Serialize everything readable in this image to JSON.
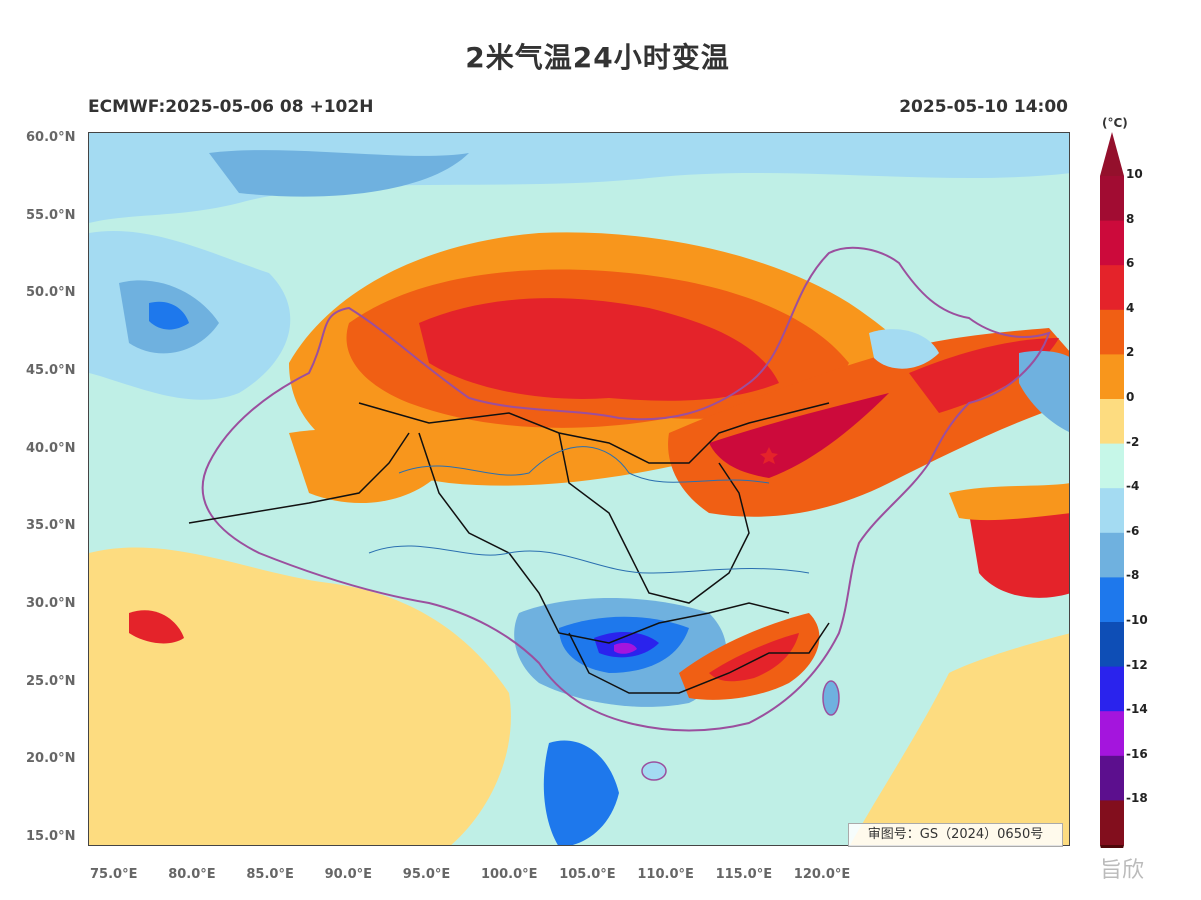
{
  "title": "2米气温24小时变温",
  "model_run": "ECMWF:2025-05-06 08 +102H",
  "valid_time": "2025-05-10 14:00",
  "approval_number": "审图号：GS（2024）0650号",
  "watermark_text": "旨欣",
  "colorbar": {
    "unit": "(°C)",
    "ticks": [
      "10",
      "8",
      "6",
      "4",
      "2",
      "0",
      "-2",
      "-4",
      "-6",
      "-8",
      "-10",
      "-12",
      "-14",
      "-16",
      "-18"
    ],
    "colors": [
      "#a10c32",
      "#cc0a3b",
      "#e4232a",
      "#f05f14",
      "#f8961c",
      "#fddc80",
      "#c6f7e8",
      "#a4dbf2",
      "#6fb1df",
      "#1e78ec",
      "#0e4eb6",
      "#2a23ed",
      "#a415dd",
      "#5c0f8e",
      "#820e1d"
    ],
    "top_arrow_color": "#94102c",
    "bottom_arrow_color": "#4d0709"
  },
  "map": {
    "lat_labels": [
      "60.0°N",
      "55.0°N",
      "50.0°N",
      "45.0°N",
      "40.0°N",
      "35.0°N",
      "30.0°N",
      "25.0°N",
      "20.0°N",
      "15.0°N"
    ],
    "lon_labels": [
      "75.0°E",
      "80.0°E",
      "85.0°E",
      "90.0°E",
      "95.0°E",
      "100.0°E",
      "105.0°E",
      "110.0°E",
      "115.0°E",
      "120.0°E"
    ],
    "background_color": "#bfefe6"
  }
}
